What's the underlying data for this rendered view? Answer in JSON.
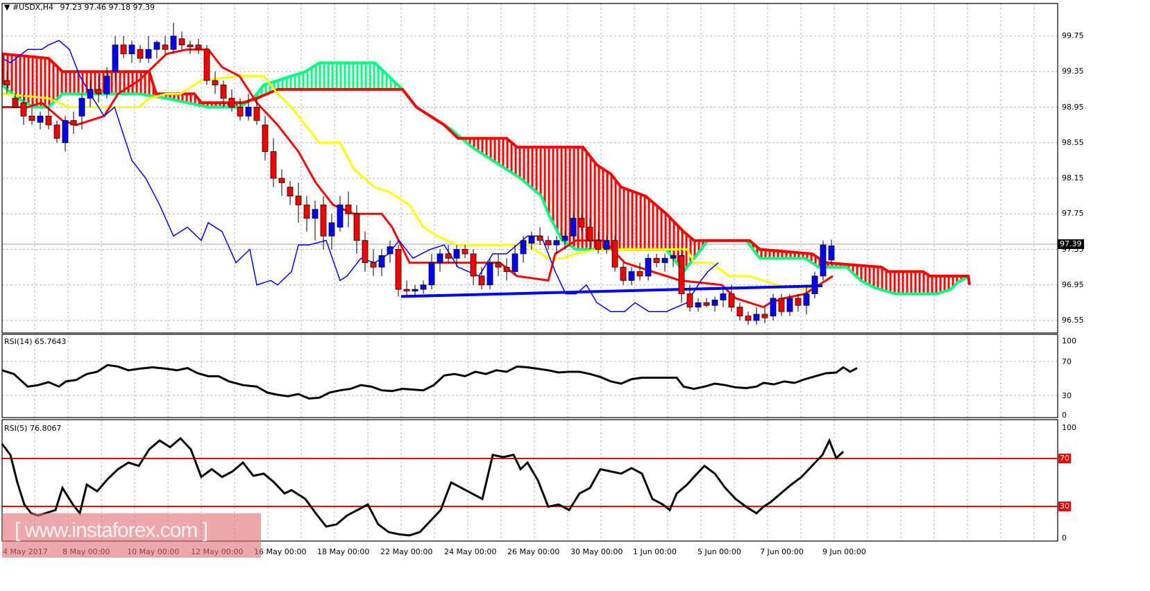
{
  "header": {
    "symbol_title": "▼ #USDX,H4",
    "ohlc": "97.23 97.46 97.18 97.39"
  },
  "price_axis": {
    "ticks": [
      "99.75",
      "99.35",
      "98.95",
      "98.55",
      "98.15",
      "97.75",
      "97.35",
      "96.95",
      "96.55"
    ],
    "current_price": "97.39"
  },
  "rsi14": {
    "label": "RSI(14) 65.7643",
    "ticks": [
      "100",
      "70",
      "30",
      "0"
    ]
  },
  "rsi5": {
    "label": "RSI(5) 76.8067",
    "ticks": [
      "100",
      "0"
    ],
    "level_70": "70",
    "level_30": "30"
  },
  "time_axis": {
    "ticks": [
      "4 May 2017",
      "8 May 00:00",
      "10 May 00:00",
      "12 May 00:00",
      "16 May 00:00",
      "18 May 00:00",
      "22 May 00:00",
      "24 May 00:00",
      "26 May 00:00",
      "30 May 00:00",
      "1 Jun 00:00",
      "5 Jun 00:00",
      "7 Jun 00:00",
      "9 Jun 00:00"
    ]
  },
  "watermark": "[ www.instaforex.com ]",
  "colors": {
    "bull_candle": "#0000ff",
    "bear_candle": "#ff0000",
    "tenkan": "#ff0000",
    "kijun": "#ffff00",
    "chikou": "#0000ff",
    "senkou_a": "#ff0000",
    "senkou_b": "#00ff7f",
    "rsi": "#000000",
    "level_line": "#ff0000",
    "grid": "#b4b4b4"
  },
  "chart_data": [
    {
      "type": "candlestick+ichimoku",
      "title": "#USDX,H4 97.23 97.46 97.18 97.39",
      "ylim": [
        96.45,
        100.05
      ],
      "ylabel": "Price",
      "yticks": [
        99.75,
        99.35,
        98.95,
        98.55,
        98.15,
        97.75,
        97.35,
        96.95,
        96.55
      ],
      "x": [
        "4 May 2017",
        "8 May",
        "10 May",
        "12 May",
        "16 May",
        "18 May",
        "22 May",
        "24 May",
        "26 May",
        "30 May",
        "1 Jun",
        "5 Jun",
        "7 Jun",
        "9 Jun"
      ],
      "close_approx": [
        99.2,
        98.8,
        99.3,
        99.65,
        98.9,
        97.7,
        97.15,
        97.3,
        97.25,
        97.45,
        97.05,
        96.75,
        96.75,
        97.39
      ],
      "annotations": [
        "Blue support trendline ~96.85 → 96.95 (22 May – 9 Jun)",
        "Ichimoku cloud projected to ~97.0–97.2 ahead"
      ],
      "current_price": 97.39,
      "grid": true
    },
    {
      "type": "line",
      "title": "RSI(14) 65.7643",
      "ylim": [
        0,
        100
      ],
      "yticks": [
        100,
        70,
        30,
        0
      ],
      "x": [
        "4 May 2017",
        "8 May",
        "10 May",
        "12 May",
        "16 May",
        "18 May",
        "22 May",
        "24 May",
        "26 May",
        "30 May",
        "1 Jun",
        "5 Jun",
        "7 Jun",
        "9 Jun"
      ],
      "values": [
        60,
        45,
        65,
        62,
        25,
        35,
        30,
        50,
        55,
        58,
        50,
        35,
        42,
        65.76
      ]
    },
    {
      "type": "line",
      "title": "RSI(5) 76.8067",
      "ylim": [
        0,
        100
      ],
      "levels": [
        70,
        30
      ],
      "x": [
        "4 May 2017",
        "8 May",
        "10 May",
        "12 May",
        "16 May",
        "18 May",
        "22 May",
        "24 May",
        "26 May",
        "30 May",
        "1 Jun",
        "5 Jun",
        "7 Jun",
        "9 Jun"
      ],
      "values": [
        85,
        50,
        75,
        40,
        5,
        40,
        25,
        75,
        55,
        80,
        55,
        25,
        45,
        76.81
      ]
    }
  ]
}
